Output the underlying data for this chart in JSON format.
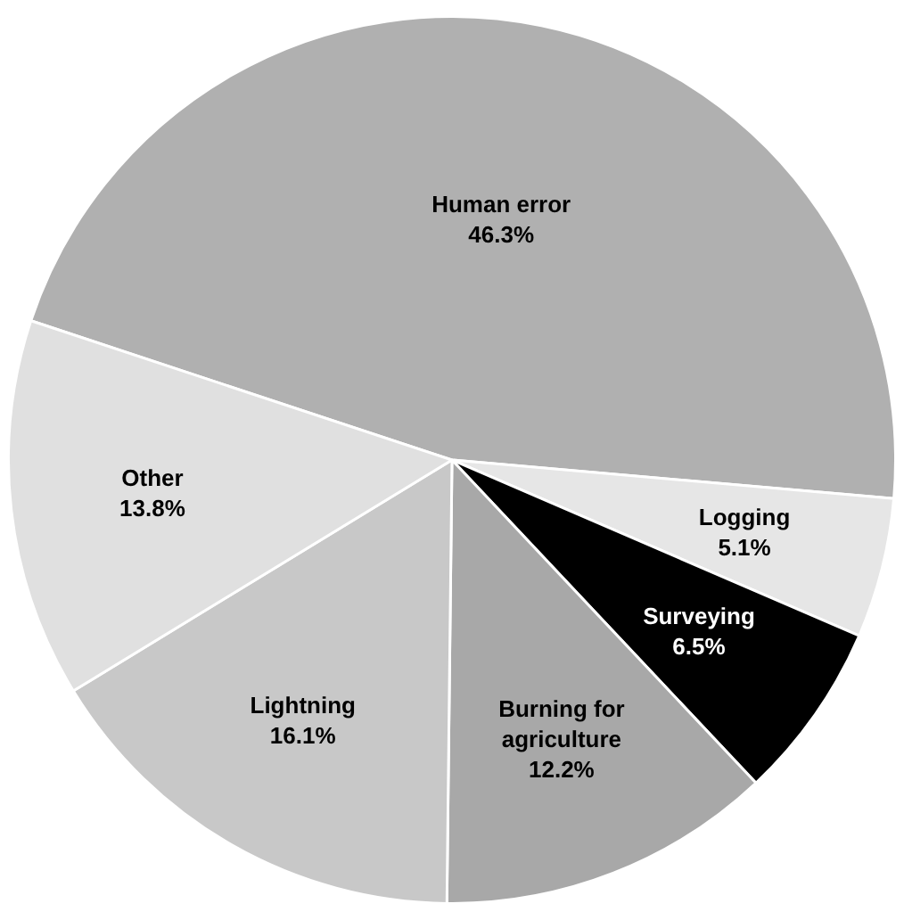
{
  "chart_data": {
    "type": "pie",
    "categories": [
      "Human error",
      "Logging",
      "Surveying",
      "Burning for agriculture",
      "Lightning",
      "Other"
    ],
    "values": [
      46.3,
      5.1,
      6.5,
      12.2,
      16.1,
      13.8
    ],
    "value_labels": [
      "46.3%",
      "5.1%",
      "6.5%",
      "12.2%",
      "16.1%",
      "13.8%"
    ],
    "colors": [
      "#b0b0b0",
      "#e6e6e6",
      "#000000",
      "#a8a8a8",
      "#c8c8c8",
      "#e0e0e0"
    ]
  }
}
